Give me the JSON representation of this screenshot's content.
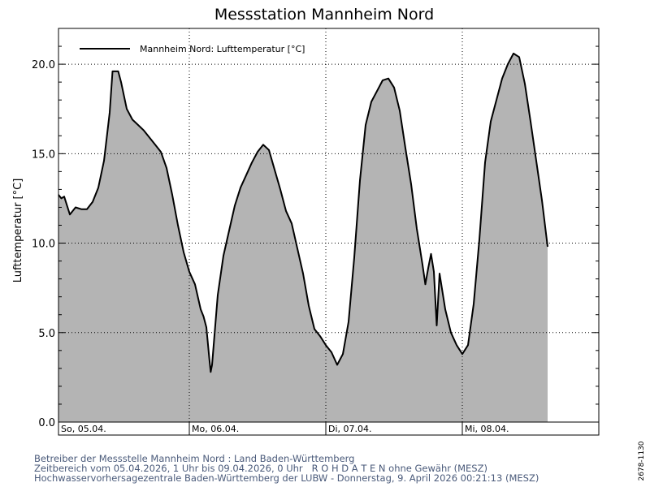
{
  "chart_data": {
    "type": "area",
    "title": "Messstation Mannheim Nord",
    "ylabel": "Lufttemperatur [°C]",
    "ylim": [
      0,
      22
    ],
    "yticks": [
      0,
      5,
      10,
      15,
      20
    ],
    "ytick_labels": [
      "0.0",
      "5.0",
      "10.0",
      "15.0",
      "20.0"
    ],
    "grid": true,
    "legend_position": "top-left",
    "x_start": "2026-04-05 01:00",
    "x_end": "2026-04-09 00:00",
    "day_labels": [
      {
        "label": "So, 05.04.",
        "x": "2026-04-05 00:00"
      },
      {
        "label": "Mo, 06.04.",
        "x": "2026-04-06 00:00"
      },
      {
        "label": "Di, 07.04.",
        "x": "2026-04-07 00:00"
      },
      {
        "label": "Mi, 08.04.",
        "x": "2026-04-08 00:00"
      }
    ],
    "series": [
      {
        "name": "Mannheim Nord: Lufttemperatur  [°C]",
        "color": "#000000",
        "fill": "#b4b4b4",
        "points": [
          [
            "2026-04-05 01:00",
            12.7
          ],
          [
            "2026-04-05 01:30",
            12.5
          ],
          [
            "2026-04-05 02:00",
            12.6
          ],
          [
            "2026-04-05 03:00",
            11.6
          ],
          [
            "2026-04-05 04:00",
            12.0
          ],
          [
            "2026-04-05 05:00",
            11.9
          ],
          [
            "2026-04-05 06:00",
            11.9
          ],
          [
            "2026-04-05 07:00",
            12.3
          ],
          [
            "2026-04-05 08:00",
            13.1
          ],
          [
            "2026-04-05 09:00",
            14.6
          ],
          [
            "2026-04-05 10:00",
            17.3
          ],
          [
            "2026-04-05 10:30",
            19.6
          ],
          [
            "2026-04-05 11:30",
            19.6
          ],
          [
            "2026-04-05 12:00",
            19.0
          ],
          [
            "2026-04-05 13:00",
            17.5
          ],
          [
            "2026-04-05 14:00",
            16.9
          ],
          [
            "2026-04-05 15:00",
            16.6
          ],
          [
            "2026-04-05 16:00",
            16.3
          ],
          [
            "2026-04-05 17:00",
            15.9
          ],
          [
            "2026-04-05 18:00",
            15.5
          ],
          [
            "2026-04-05 19:00",
            15.1
          ],
          [
            "2026-04-05 20:00",
            14.2
          ],
          [
            "2026-04-05 21:00",
            12.7
          ],
          [
            "2026-04-05 22:00",
            11.0
          ],
          [
            "2026-04-05 23:00",
            9.5
          ],
          [
            "2026-04-06 00:00",
            8.4
          ],
          [
            "2026-04-06 01:00",
            7.7
          ],
          [
            "2026-04-06 02:00",
            6.3
          ],
          [
            "2026-04-06 02:30",
            5.9
          ],
          [
            "2026-04-06 03:00",
            5.3
          ],
          [
            "2026-04-06 03:30",
            3.6
          ],
          [
            "2026-04-06 03:45",
            2.8
          ],
          [
            "2026-04-06 04:00",
            3.2
          ],
          [
            "2026-04-06 05:00",
            7.1
          ],
          [
            "2026-04-06 06:00",
            9.3
          ],
          [
            "2026-04-06 07:00",
            10.7
          ],
          [
            "2026-04-06 08:00",
            12.1
          ],
          [
            "2026-04-06 09:00",
            13.1
          ],
          [
            "2026-04-06 10:00",
            13.8
          ],
          [
            "2026-04-06 11:00",
            14.5
          ],
          [
            "2026-04-06 12:00",
            15.1
          ],
          [
            "2026-04-06 13:00",
            15.5
          ],
          [
            "2026-04-06 14:00",
            15.2
          ],
          [
            "2026-04-06 15:00",
            14.1
          ],
          [
            "2026-04-06 16:00",
            13.0
          ],
          [
            "2026-04-06 17:00",
            11.8
          ],
          [
            "2026-04-06 18:00",
            11.1
          ],
          [
            "2026-04-06 19:00",
            9.7
          ],
          [
            "2026-04-06 20:00",
            8.3
          ],
          [
            "2026-04-06 21:00",
            6.5
          ],
          [
            "2026-04-06 22:00",
            5.2
          ],
          [
            "2026-04-06 23:00",
            4.8
          ],
          [
            "2026-04-07 00:00",
            4.3
          ],
          [
            "2026-04-07 01:00",
            3.9
          ],
          [
            "2026-04-07 02:00",
            3.2
          ],
          [
            "2026-04-07 03:00",
            3.8
          ],
          [
            "2026-04-07 04:00",
            5.6
          ],
          [
            "2026-04-07 05:00",
            9.2
          ],
          [
            "2026-04-07 06:00",
            13.5
          ],
          [
            "2026-04-07 07:00",
            16.6
          ],
          [
            "2026-04-07 08:00",
            17.9
          ],
          [
            "2026-04-07 09:00",
            18.5
          ],
          [
            "2026-04-07 10:00",
            19.1
          ],
          [
            "2026-04-07 11:00",
            19.2
          ],
          [
            "2026-04-07 12:00",
            18.7
          ],
          [
            "2026-04-07 13:00",
            17.4
          ],
          [
            "2026-04-07 14:00",
            15.3
          ],
          [
            "2026-04-07 15:00",
            13.3
          ],
          [
            "2026-04-07 16:00",
            10.8
          ],
          [
            "2026-04-07 17:00",
            8.8
          ],
          [
            "2026-04-07 17:30",
            7.7
          ],
          [
            "2026-04-07 18:00",
            8.6
          ],
          [
            "2026-04-07 18:30",
            9.4
          ],
          [
            "2026-04-07 19:00",
            8.4
          ],
          [
            "2026-04-07 19:30",
            5.4
          ],
          [
            "2026-04-07 20:00",
            8.3
          ],
          [
            "2026-04-07 21:00",
            6.3
          ],
          [
            "2026-04-07 22:00",
            5.0
          ],
          [
            "2026-04-07 23:00",
            4.3
          ],
          [
            "2026-04-08 00:00",
            3.8
          ],
          [
            "2026-04-08 01:00",
            4.3
          ],
          [
            "2026-04-08 02:00",
            6.6
          ],
          [
            "2026-04-08 03:00",
            10.2
          ],
          [
            "2026-04-08 04:00",
            14.5
          ],
          [
            "2026-04-08 05:00",
            16.8
          ],
          [
            "2026-04-08 06:00",
            18.0
          ],
          [
            "2026-04-08 07:00",
            19.2
          ],
          [
            "2026-04-08 08:00",
            20.0
          ],
          [
            "2026-04-08 09:00",
            20.6
          ],
          [
            "2026-04-08 10:00",
            20.4
          ],
          [
            "2026-04-08 11:00",
            18.9
          ],
          [
            "2026-04-08 12:00",
            16.8
          ],
          [
            "2026-04-08 13:00",
            14.6
          ],
          [
            "2026-04-08 14:00",
            12.4
          ],
          [
            "2026-04-08 15:00",
            9.8
          ]
        ]
      }
    ]
  },
  "footer": {
    "line1": "Betreiber der Messstelle Mannheim Nord : Land Baden-Württemberg",
    "line2": "Zeitbereich vom 05.04.2026, 1 Uhr bis 09.04.2026, 0 Uhr   R O H D A T E N ohne Gewähr (MESZ)",
    "line3": "Hochwasservorhersagezentrale Baden-Württemberg der LUBW - Donnerstag, 9. April 2026 00:21:13 (MESZ)"
  },
  "side_code": "2678-1130"
}
